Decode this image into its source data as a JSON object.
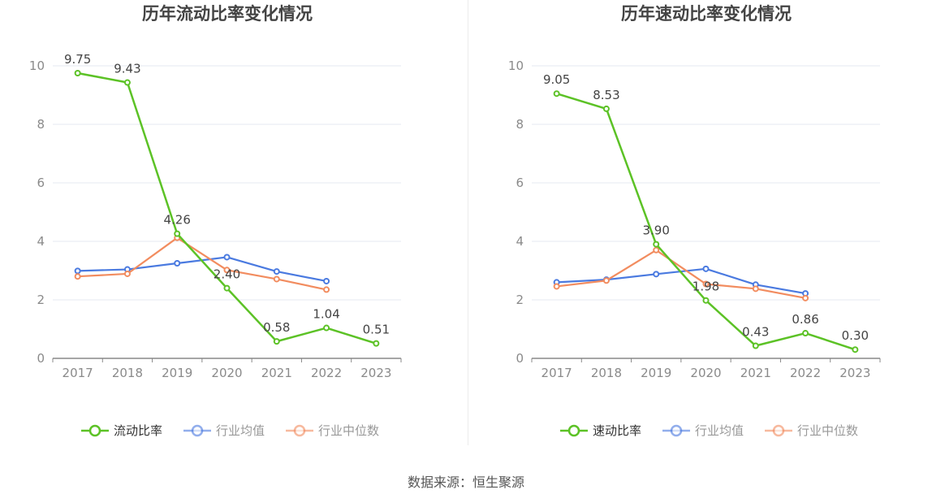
{
  "source_text": "数据来源：恒生聚源",
  "colors": {
    "green": "#5cc226",
    "blue": "#4a7ae0",
    "orange": "#f28c5f",
    "grid": "#e6e9f2",
    "axis": "#888888",
    "legend_inactive": "#999999"
  },
  "chart_data": [
    {
      "type": "line",
      "title": "历年流动比率变化情况",
      "categories": [
        "2017",
        "2018",
        "2019",
        "2020",
        "2021",
        "2022",
        "2023"
      ],
      "xlabel": "",
      "ylabel": "",
      "ylim": [
        0,
        10
      ],
      "yticks": [
        "0",
        "2",
        "4",
        "6",
        "8",
        "10"
      ],
      "grid": true,
      "legend_position": "bottom",
      "series": [
        {
          "name": "流动比率",
          "values": [
            9.75,
            9.43,
            4.26,
            2.4,
            0.58,
            1.04,
            0.51
          ],
          "labels": [
            "9.75",
            "9.43",
            "4.26",
            "2.40",
            "0.58",
            "1.04",
            "0.51"
          ]
        },
        {
          "name": "行业均值",
          "values": [
            2.99,
            3.04,
            3.25,
            3.46,
            2.97,
            2.64,
            null
          ]
        },
        {
          "name": "行业中位数",
          "values": [
            2.8,
            2.89,
            4.12,
            3.02,
            2.71,
            2.35,
            null
          ]
        }
      ]
    },
    {
      "type": "line",
      "title": "历年速动比率变化情况",
      "categories": [
        "2017",
        "2018",
        "2019",
        "2020",
        "2021",
        "2022",
        "2023"
      ],
      "xlabel": "",
      "ylabel": "",
      "ylim": [
        0,
        10
      ],
      "yticks": [
        "0",
        "2",
        "4",
        "6",
        "8",
        "10"
      ],
      "grid": true,
      "legend_position": "bottom",
      "series": [
        {
          "name": "速动比率",
          "values": [
            9.05,
            8.53,
            3.9,
            1.98,
            0.43,
            0.86,
            0.3
          ],
          "labels": [
            "9.05",
            "8.53",
            "3.90",
            "1.98",
            "0.43",
            "0.86",
            "0.30"
          ]
        },
        {
          "name": "行业均值",
          "values": [
            2.6,
            2.69,
            2.88,
            3.06,
            2.52,
            2.22,
            null
          ]
        },
        {
          "name": "行业中位数",
          "values": [
            2.46,
            2.66,
            3.7,
            2.54,
            2.38,
            2.06,
            null
          ]
        }
      ]
    }
  ]
}
